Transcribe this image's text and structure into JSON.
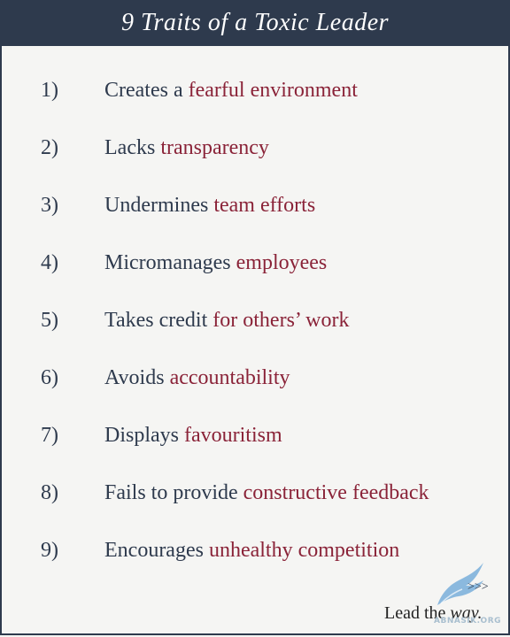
{
  "title": "9 Traits of a Toxic Leader",
  "items": [
    {
      "num": "1)",
      "plain": "Creates a ",
      "highlight": "fearful environment"
    },
    {
      "num": "2)",
      "plain": "Lacks ",
      "highlight": "transparency"
    },
    {
      "num": "3)",
      "plain": "Undermines ",
      "highlight": "team efforts"
    },
    {
      "num": "4)",
      "plain": "Micromanages ",
      "highlight": "employees"
    },
    {
      "num": "5)",
      "plain": "Takes credit ",
      "highlight": "for others’ work"
    },
    {
      "num": "6)",
      "plain": "Avoids ",
      "highlight": "accountability"
    },
    {
      "num": "7)",
      "plain": "Displays ",
      "highlight": "favouritism"
    },
    {
      "num": "8)",
      "plain": "Fails to provide ",
      "highlight": "constructive feedback"
    },
    {
      "num": "9)",
      "plain": "Encourages ",
      "highlight": "unhealthy competition"
    }
  ],
  "footer": {
    "arrows": ">>>",
    "tagline_plain": "Lead the ",
    "tagline_em": "way."
  },
  "watermark": "ABNASIK.ORG",
  "colors": {
    "header_bg": "#2e3a4d",
    "text": "#2e3a4d",
    "highlight": "#8a2338",
    "background": "#f5f5f3",
    "logo": "#7fb3dc"
  },
  "icons": [
    "bird-logo-icon"
  ]
}
